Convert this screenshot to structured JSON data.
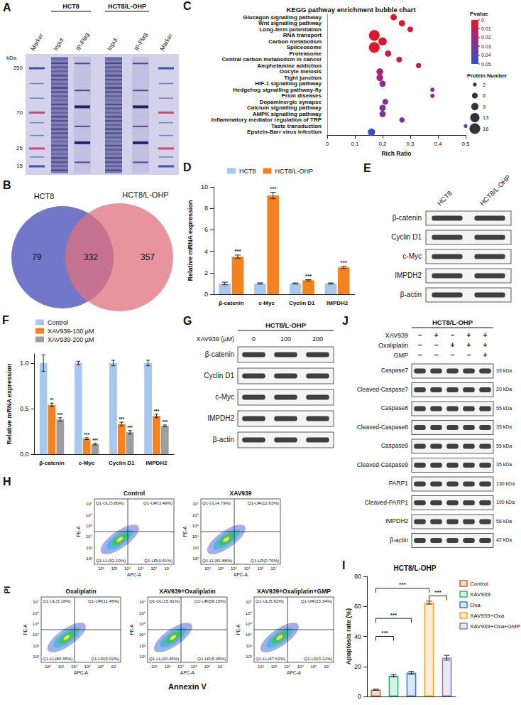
{
  "chart_data": [
    {
      "panel_label": "C",
      "type": "scatter",
      "title": "KEGG pathway enrichment bubble chart",
      "x_label": "Rich Ratio",
      "categories": [
        "Glucagon signalling pathway",
        "Wnt signalling pathway",
        "Long-term potentiation",
        "RNA transport",
        "Carbon metabolism",
        "Spliceosome",
        "Proteasome",
        "Central carbon metabolism in cancer",
        "Amphetamine addiction",
        "Oocyte meiosis",
        "Tight junction",
        "HIF-1 signalling pathway",
        "Hedgehog signalling pathway-fly",
        "Prion diseases",
        "Dopaminergic synapse",
        "Calcium signalling pathway",
        "AMPK signalling pathway",
        "Inflammatory mediator regulation of TRP",
        "Taste transduction",
        "Epstein-Barr virus infection"
      ],
      "x": [
        0.24,
        0.27,
        0.3,
        0.17,
        0.2,
        0.17,
        0.22,
        0.26,
        0.33,
        0.19,
        0.19,
        0.2,
        0.38,
        0.38,
        0.21,
        0.2,
        0.2,
        0.27,
        0.5,
        0.16
      ],
      "pvalues": [
        0.003,
        0.002,
        0.004,
        0.001,
        0.002,
        0.001,
        0.004,
        0.006,
        0.01,
        0.02,
        0.02,
        0.025,
        0.026,
        0.026,
        0.028,
        0.029,
        0.029,
        0.035,
        0.046,
        0.049
      ],
      "protein_numbers": [
        7,
        7,
        6,
        16,
        11,
        16,
        7,
        6,
        5,
        8,
        8,
        7,
        3,
        3,
        6,
        7,
        7,
        5,
        2,
        9
      ],
      "xlim": [
        0,
        0.5
      ],
      "xticks": [
        0,
        0.1,
        0.2,
        0.3,
        0.4,
        0.5
      ],
      "colorbar_title": "Pvalue",
      "colorbar_range": [
        0,
        0.05
      ],
      "colorbar_ticks": [
        0,
        0.01,
        0.02,
        0.03,
        0.04,
        0.05
      ],
      "size_legend_title": "Protein Number",
      "size_legend_values": [
        2,
        6,
        9,
        13,
        16
      ],
      "grid": false
    },
    {
      "panel_label": "D",
      "type": "bar",
      "y_label": "Relative mRNA expression",
      "categories": [
        "β-catenin",
        "c-Myc",
        "Cyclin D1",
        "IMPDH2"
      ],
      "series": [
        {
          "name": "HCT8",
          "color": "#a6c8ec",
          "values": [
            1,
            1,
            1,
            1
          ],
          "errors": [
            0.12,
            0.06,
            0.05,
            0.05
          ]
        },
        {
          "name": "HCT8/L-OHP",
          "color": "#f5821f",
          "values": [
            3.5,
            9.2,
            1.3,
            2.5
          ],
          "errors": [
            0.15,
            0.3,
            0.06,
            0.1
          ],
          "significance": [
            "***",
            "***",
            "***",
            "***"
          ]
        }
      ],
      "ylim": [
        0,
        10
      ],
      "yticks": [
        0,
        2,
        4,
        6,
        8,
        10
      ],
      "legend": "top",
      "grid": false
    },
    {
      "panel_label": "F",
      "type": "bar",
      "y_label": "Relative mRNA expression",
      "categories": [
        "β-catenin",
        "c-Myc",
        "Cyclin D1",
        "IMPDH2"
      ],
      "series": [
        {
          "name": "Control",
          "color": "#a6c8ec",
          "values": [
            1,
            1,
            1,
            1
          ],
          "errors": [
            0.09,
            0.02,
            0.03,
            0.03
          ]
        },
        {
          "name": "XAV939-100 µM",
          "color": "#f5821f",
          "values": [
            0.54,
            0.17,
            0.33,
            0.42
          ],
          "errors": [
            0.02,
            0.01,
            0.02,
            0.02
          ],
          "significance": [
            "**",
            "***",
            "***",
            "***"
          ]
        },
        {
          "name": "XAV939-200 µM",
          "color": "#9e9e9e",
          "values": [
            0.38,
            0.11,
            0.24,
            0.31
          ],
          "errors": [
            0.02,
            0.01,
            0.02,
            0.01
          ],
          "significance": [
            "***",
            "***",
            "***",
            "***"
          ]
        }
      ],
      "ylim": [
        0,
        1.1
      ],
      "yticks": [
        {
          "value": 0,
          "label": "0.0"
        },
        {
          "value": 0.5,
          "label": "0.5"
        },
        {
          "value": 1,
          "label": "1.0"
        }
      ],
      "legend": "top-left",
      "grid": false
    },
    {
      "panel_label": "I",
      "type": "bar",
      "title": "HCT8/L-OHP",
      "y_label": "Apoptosis rate (%)",
      "categories": [
        "Control",
        "XAV939",
        "Oxa",
        "XAV939+Oxa",
        "XAV939+Oxa+GMP"
      ],
      "values": [
        4.5,
        13.8,
        15.8,
        62.5,
        25.8
      ],
      "errors": [
        0.4,
        0.8,
        1.0,
        1.0,
        1.6
      ],
      "colors": [
        "#e8542b",
        "#2bb673",
        "#3a7fd5",
        "#f5a623",
        "#8e7cc3"
      ],
      "comparisons": [
        {
          "from": 0,
          "to": 1,
          "y": 40,
          "label": "***"
        },
        {
          "from": 0,
          "to": 2,
          "y": 52,
          "label": "***"
        },
        {
          "from": 0,
          "to": 3,
          "y": 72,
          "label": "***"
        },
        {
          "from": 3,
          "to": 4,
          "y": 67,
          "label": "***"
        }
      ],
      "ylim": [
        0,
        80
      ],
      "yticks": [
        0,
        20,
        40,
        60,
        80
      ],
      "legend": "right",
      "tick_labels": "y",
      "grid": false
    }
  ],
  "figure": {
    "gel": {
      "panel_label": "A",
      "groups": [
        {
          "label": "HCT8",
          "lanes": [
            1,
            2
          ]
        },
        {
          "label": "HCT8/L-OHP",
          "lanes": [
            3,
            4
          ]
        }
      ],
      "lanes": [
        "Marker",
        "Input",
        "IP-Flag",
        "Input",
        "IP-Flag",
        "Marker"
      ],
      "unit": "kDa",
      "markers": [
        250,
        70,
        25,
        15
      ]
    },
    "venn": {
      "panel_label": "B",
      "sets": [
        "HCT8",
        "HCT8/L-OHP"
      ],
      "counts": {
        "only_first": 79,
        "both": 332,
        "only_second": 357
      }
    },
    "blots": [
      {
        "panel_label": "E",
        "columns": [
          "HCT8",
          "HCT8/L-OHP"
        ],
        "rows": [
          "β-catenin",
          "Cyclin D1",
          "c-Myc",
          "IMPDH2",
          "β-actin"
        ]
      },
      {
        "panel_label": "G",
        "title": "HCT8/L-OHP",
        "column_title": "XAV939 (µM)",
        "columns": [
          0,
          100,
          200
        ],
        "rows": [
          "β-catenin",
          "Cyclin D1",
          "c-Myc",
          "IMPDH2",
          "β-actin"
        ]
      },
      {
        "panel_label": "J",
        "title": "HCT8/L-OHP",
        "conditions": [
          {
            "name": "XAV939",
            "signs": [
              "–",
              "+",
              "–",
              "+",
              "+"
            ]
          },
          {
            "name": "Oxaliplatin",
            "signs": [
              "–",
              "–",
              "+",
              "+",
              "+"
            ]
          },
          {
            "name": "GMP",
            "signs": [
              "–",
              "–",
              "–",
              "–",
              "+"
            ]
          }
        ],
        "rows": [
          {
            "label": "Caspase7",
            "size": "35 kDa"
          },
          {
            "label": "Cleaved-Caspase7",
            "size": "20 kDa"
          },
          {
            "label": "Caspase8",
            "size": "55 kDa"
          },
          {
            "label": "Cleaved-Caspase8",
            "size": "35 kDa"
          },
          {
            "label": "Caspase9",
            "size": "55 kDa"
          },
          {
            "label": "Cleaved-Caspase9",
            "size": "35 kDa"
          },
          {
            "label": "PARP1",
            "size": "130 kDa"
          },
          {
            "label": "Cleaved-PARP1",
            "size": "100 kDa"
          },
          {
            "label": "IMPDH2",
            "size": "56 kDa"
          },
          {
            "label": "β-actin",
            "size": "42 kDa"
          }
        ]
      }
    ],
    "flow": {
      "panel_label": "H",
      "y_label": "PI",
      "x_label": "Annexin V",
      "plot_y_label": "PE-A",
      "plot_x_label": "APC-A",
      "ticks": [
        "10²",
        "10³",
        "10⁴",
        "10⁵",
        "10⁶",
        "10⁷"
      ],
      "plots": [
        {
          "title": "Control",
          "UL": "Q1-UL(3.80%)",
          "UR": "Q1-UR(3.49%)",
          "LL": "Q1-LL(92.10%)",
          "LR": "Q1-LR(0.61%)"
        },
        {
          "title": "XAV939",
          "UL": "Q1-UL(4.79%)",
          "UR": "Q1-UR(12.63%)",
          "LL": "Q1-LL(81.88%)",
          "LR": "Q1-LR(0.70%)"
        },
        {
          "title": "Oxaliplatin",
          "UL": "Q1-UL(3.18%)",
          "UR": "Q1-UR(11.45%)",
          "LL": "Q1-LL(80.35%)",
          "LR": "Q1-LR(5.02%)"
        },
        {
          "title": "XAV939+Oxaliplatin",
          "UL": "Q1-UL(15.91%)",
          "UR": "Q1-UR(58.15%)",
          "LL": "Q1-LL(20.46%)",
          "LR": "Q1-LR(5.48%)"
        },
        {
          "title": "XAV939+Oxaliplatin+GMP",
          "UL": "Q1-UL(5.92%)",
          "UR": "Q1-UR(23.34%)",
          "LL": "Q1-LL(67.62%)",
          "LR": "Q1-LR(3.12%)"
        }
      ]
    }
  }
}
